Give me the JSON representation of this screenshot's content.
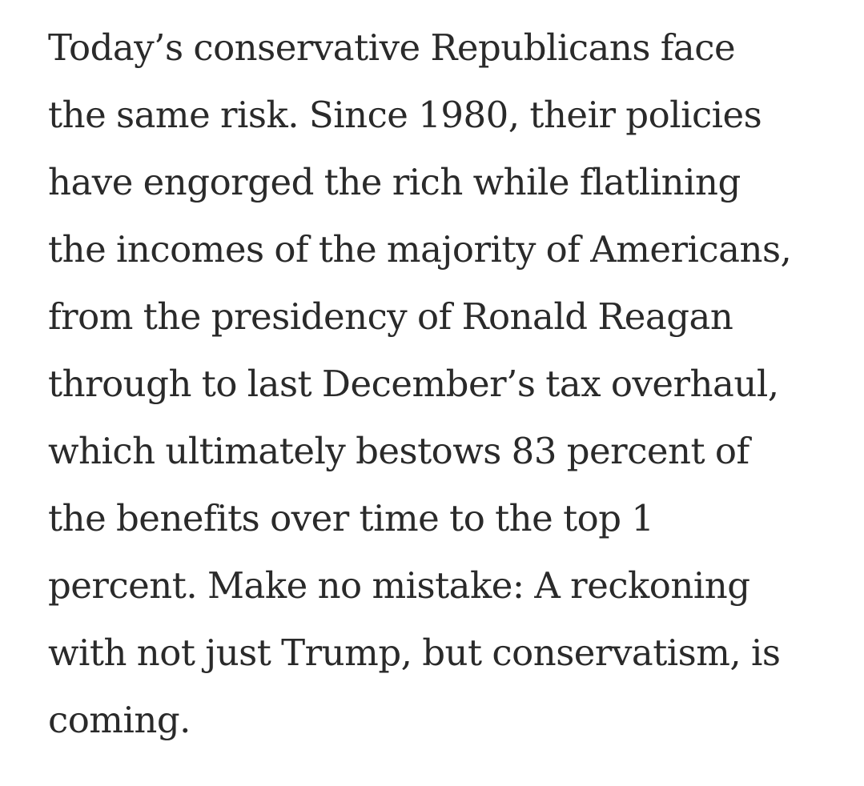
{
  "article": {
    "lines": [
      "Today’s conservative Republicans face",
      "the same risk. Since 1980, their policies",
      "have engorged the rich while flatlining",
      "the incomes of the majority of Americans,",
      "from the presidency of Ronald Reagan",
      "through to last December’s tax overhaul,",
      "which ultimately bestows 83 percent of",
      "the benefits over time to the top 1",
      "percent. Make no mistake: A reckoning",
      "with not just Trump, but conservatism, is",
      "coming."
    ],
    "text_color": "#2a2a2a",
    "background_color": "#ffffff"
  }
}
